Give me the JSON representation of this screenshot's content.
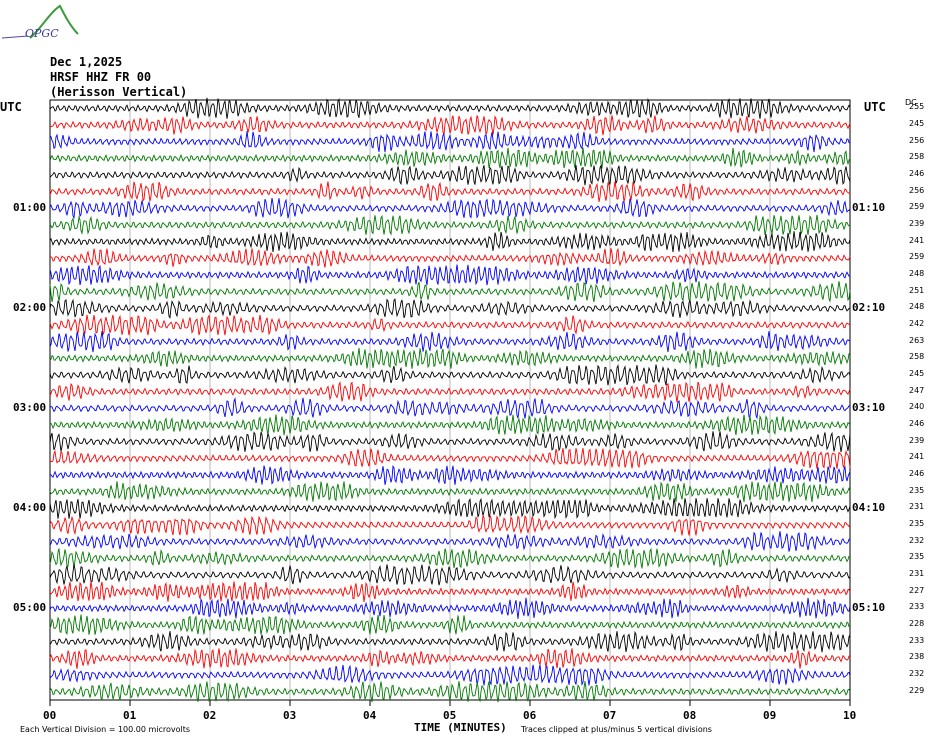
{
  "logo": {
    "text": "OPGC"
  },
  "header": {
    "date": "Dec 1,2025",
    "station": "HRSF HHZ FR 00",
    "location": "(Herisson Vertical)"
  },
  "axes": {
    "utc_left": "UTC",
    "utc_right": "UTC",
    "dc_label": "DC"
  },
  "footer": {
    "vertical_division": "Each Vertical Division = 100.00 microvolts",
    "clip_note": "Traces clipped at plus/minus 5 vertical divisions"
  },
  "colors": {
    "line_cycle": [
      "#000000",
      "#ff0000",
      "#0000ff",
      "#007a00"
    ],
    "grid": "#888888"
  },
  "chart_data": {
    "type": "line",
    "title": "",
    "xlabel": "TIME (MINUTES)",
    "xlim": [
      0,
      10
    ],
    "x_ticks": [
      "00",
      "01",
      "02",
      "03",
      "04",
      "05",
      "06",
      "07",
      "08",
      "09",
      "10"
    ],
    "left_time_labels": [
      {
        "row": 6,
        "label": "01:00"
      },
      {
        "row": 12,
        "label": "02:00"
      },
      {
        "row": 18,
        "label": "03:00"
      },
      {
        "row": 24,
        "label": "04:00"
      },
      {
        "row": 30,
        "label": "05:00"
      }
    ],
    "right_time_labels": [
      {
        "row": 6,
        "label": "01:10"
      },
      {
        "row": 12,
        "label": "02:10"
      },
      {
        "row": 18,
        "label": "03:10"
      },
      {
        "row": 24,
        "label": "04:10"
      },
      {
        "row": 30,
        "label": "05:10"
      }
    ],
    "dc_values": [
      255,
      245,
      256,
      258,
      246,
      256,
      259,
      239,
      241,
      259,
      248,
      251,
      248,
      242,
      263,
      258,
      245,
      247,
      240,
      246,
      239,
      241,
      246,
      235,
      231,
      235,
      232,
      235,
      231,
      227,
      233,
      228,
      233,
      238,
      232,
      229
    ],
    "rows": 36,
    "grid": true
  }
}
